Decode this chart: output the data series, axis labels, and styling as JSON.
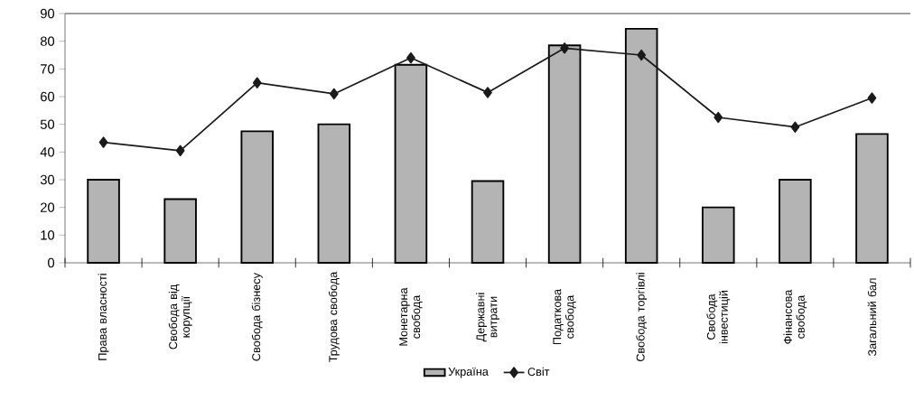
{
  "chart_data": {
    "type": "bar",
    "categories": [
      "Права власності",
      "Свобода від корупції",
      "Свобода бізнесу",
      "Трудова свобода",
      "Монетарна свобода",
      "Державні витрати",
      "Податкова свобода",
      "Свобода торгівлі",
      "Свобода інвестицій",
      "Фінансова свобода",
      "Загальний бал"
    ],
    "series": [
      {
        "name": "Україна",
        "color": "#b4b4b4",
        "values": [
          30,
          23,
          47.5,
          50,
          71.5,
          29.5,
          78.5,
          84.5,
          20,
          30,
          46.5
        ]
      },
      {
        "name": "Світ",
        "type": "line",
        "color": "#1a1a1a",
        "marker": "diamond",
        "values": [
          43.5,
          40.5,
          65,
          61,
          74,
          61.5,
          77.5,
          75,
          52.5,
          49,
          59.5
        ]
      }
    ],
    "ylim": [
      0,
      90
    ],
    "yticks": [
      0,
      10,
      20,
      30,
      40,
      50,
      60,
      70,
      80,
      90
    ],
    "legend": "bottom"
  }
}
